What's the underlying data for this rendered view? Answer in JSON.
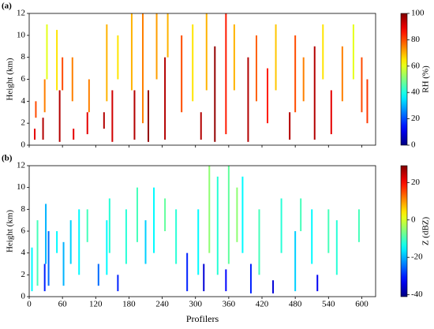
{
  "chart_data": [
    {
      "type": "profile",
      "panel_label": "(a)",
      "ylabel": "Height (km)",
      "colorbar_label": "RH (%)",
      "colormap": "jet",
      "xlim": [
        0,
        625
      ],
      "xticks": [
        0,
        60,
        120,
        180,
        240,
        300,
        360,
        420,
        480,
        540,
        600
      ],
      "ylim": [
        0,
        12
      ],
      "yticks": [
        0,
        2,
        4,
        6,
        8,
        10,
        12
      ],
      "clim": [
        0,
        100
      ],
      "cticks": [
        0,
        20,
        40,
        60,
        80,
        100
      ],
      "x": [
        10,
        12,
        25,
        28,
        32,
        50,
        55,
        60,
        78,
        80,
        105,
        108,
        135,
        140,
        150,
        160,
        185,
        190,
        205,
        215,
        230,
        245,
        250,
        275,
        295,
        310,
        320,
        335,
        355,
        370,
        395,
        410,
        430,
        445,
        470,
        480,
        495,
        515,
        530,
        545,
        565,
        585,
        600,
        610
      ],
      "y_bottom": [
        0.5,
        2.5,
        0.5,
        3,
        6,
        5,
        0.3,
        5,
        4,
        0.5,
        1,
        3,
        1.5,
        4,
        0.3,
        6,
        5,
        0.5,
        2,
        0.3,
        6,
        0.5,
        8,
        3,
        4,
        0.5,
        5,
        0.3,
        1,
        5,
        0.3,
        4,
        2,
        5,
        0.5,
        3,
        4,
        0.5,
        6,
        1,
        4,
        6,
        3,
        2
      ],
      "y_top": [
        1.5,
        4,
        2.5,
        6,
        11,
        10.5,
        5,
        8,
        8,
        1.5,
        3,
        6,
        3,
        11,
        5,
        10,
        12,
        5,
        12,
        5,
        12,
        8,
        12,
        10,
        11,
        3,
        12,
        9,
        12,
        11,
        8,
        10,
        7,
        11,
        3,
        10,
        8,
        9,
        11,
        5,
        9,
        11,
        8,
        6
      ],
      "values": [
        90,
        80,
        95,
        75,
        60,
        65,
        95,
        80,
        75,
        90,
        90,
        75,
        95,
        70,
        92,
        65,
        70,
        95,
        75,
        98,
        72,
        95,
        70,
        80,
        65,
        95,
        70,
        98,
        85,
        70,
        95,
        78,
        85,
        68,
        95,
        80,
        75,
        95,
        65,
        90,
        75,
        60,
        80,
        82
      ]
    },
    {
      "type": "profile",
      "panel_label": "(b)",
      "ylabel": "Height (km)",
      "xlabel": "Profilers",
      "colorbar_label": "Z (dBZ)",
      "colormap": "jet",
      "xlim": [
        0,
        625
      ],
      "xticks": [
        0,
        60,
        120,
        180,
        240,
        300,
        360,
        420,
        480,
        540,
        600
      ],
      "ylim": [
        0,
        12
      ],
      "yticks": [
        0,
        2,
        4,
        6,
        8,
        10,
        12
      ],
      "clim": [
        -41,
        29
      ],
      "cticks": [
        -40,
        -20,
        0,
        20
      ],
      "x": [
        5,
        15,
        28,
        30,
        35,
        50,
        62,
        75,
        90,
        105,
        125,
        140,
        145,
        160,
        175,
        195,
        210,
        225,
        245,
        265,
        285,
        305,
        315,
        325,
        340,
        355,
        360,
        375,
        385,
        400,
        415,
        440,
        455,
        480,
        490,
        510,
        520,
        540,
        555,
        595
      ],
      "y_bottom": [
        0.5,
        1,
        0.5,
        3,
        1,
        4,
        1,
        3,
        2,
        5,
        1,
        2,
        4,
        0.5,
        3,
        5,
        3,
        4,
        6,
        3,
        0.5,
        2,
        0.5,
        4,
        2,
        0.5,
        3,
        5,
        4,
        0.3,
        2,
        0.3,
        4,
        0.5,
        6,
        3,
        0.5,
        4,
        2,
        5
      ],
      "y_top": [
        4.5,
        7,
        3,
        8.5,
        6,
        6,
        5,
        7,
        8,
        8,
        3,
        7,
        9,
        2,
        8,
        10,
        7,
        10,
        9,
        8,
        4,
        8,
        3,
        12,
        11,
        2.5,
        12,
        10,
        11,
        3,
        8,
        1.5,
        9,
        6,
        9,
        8,
        2,
        8,
        7,
        8
      ],
      "values": [
        -15,
        -10,
        -30,
        -20,
        -25,
        -15,
        -20,
        -18,
        -15,
        -10,
        -25,
        -15,
        -12,
        -30,
        -12,
        -10,
        -18,
        -15,
        -8,
        -12,
        -30,
        -15,
        -35,
        -5,
        -12,
        -32,
        -8,
        -5,
        -15,
        -30,
        -10,
        -35,
        -12,
        -18,
        -10,
        -15,
        -33,
        -10,
        -12,
        -10
      ]
    }
  ]
}
